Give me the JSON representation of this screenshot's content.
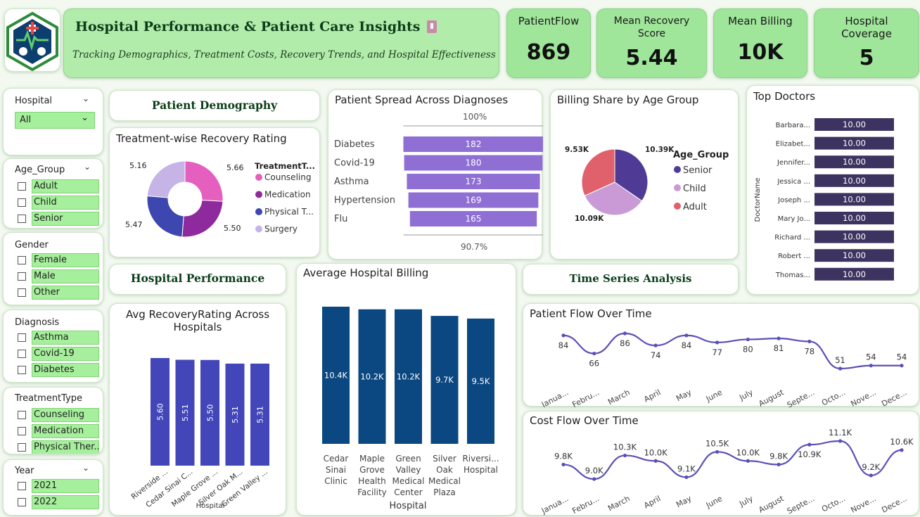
{
  "header": {
    "title": "Hospital Performance & Patient Care Insights",
    "subtitle": "Tracking Demographics, Treatment Costs, Recovery Trends, and Hospital Effectiveness"
  },
  "kpis": [
    {
      "label": "PatientFlow",
      "value": "869"
    },
    {
      "label": "Mean Recovery Score",
      "value": "5.44"
    },
    {
      "label": "Mean Billing",
      "value": "10K"
    },
    {
      "label": "Hospital Coverage",
      "value": "5"
    }
  ],
  "slicers": {
    "hospital": {
      "title": "Hospital",
      "selected": "All"
    },
    "age_group": {
      "title": "Age_Group",
      "options": [
        "Adult",
        "Child",
        "Senior"
      ]
    },
    "gender": {
      "title": "Gender",
      "options": [
        "Female",
        "Male",
        "Other"
      ]
    },
    "diagnosis": {
      "title": "Diagnosis",
      "options": [
        "Asthma",
        "Covid-19",
        "Diabetes"
      ]
    },
    "treatment": {
      "title": "TreatmentType",
      "options": [
        "Counseling",
        "Medication",
        "Physical Ther..."
      ]
    },
    "year": {
      "title": "Year",
      "options": [
        "2021",
        "2022"
      ]
    }
  },
  "sections": {
    "demography": "Patient Demography",
    "performance": "Hospital Performance",
    "time_series": "Time Series Analysis"
  },
  "colors": {
    "green_kpi": "#9fe59a",
    "purple_bar": "#8f6fd4",
    "navy_bar": "#0b4780",
    "indigo_bar": "#4346b8",
    "line": "#5a4fb8",
    "doctor_bar": "#3d3360"
  },
  "chart_data": [
    {
      "id": "treatment_recovery",
      "type": "pie",
      "title": "Treatment-wise Recovery Rating",
      "legend_title": "TreatmentT...",
      "categories": [
        "Counseling",
        "Medication",
        "Physical T...",
        "Surgery"
      ],
      "values": [
        5.66,
        5.5,
        5.47,
        5.16
      ],
      "labels": [
        "5.66",
        "5.50",
        "5.47",
        "5.16"
      ],
      "colors": [
        "#e55fbf",
        "#8f2a9e",
        "#3e46b0",
        "#c6b4e6"
      ],
      "legend_placement": "right"
    },
    {
      "id": "diagnoses_funnel",
      "type": "bar",
      "title": "Patient Spread Across Diagnoses",
      "categories": [
        "Diabetes",
        "Covid-19",
        "Asthma",
        "Hypertension",
        "Flu"
      ],
      "values": [
        182,
        180,
        173,
        169,
        165
      ],
      "top_label": "100%",
      "bottom_label": "90.7%"
    },
    {
      "id": "billing_age",
      "type": "pie",
      "title": "Billing Share by Age Group",
      "legend_title": "Age_Group",
      "categories": [
        "Senior",
        "Child",
        "Adult"
      ],
      "values": [
        10.39,
        10.09,
        9.53
      ],
      "labels": [
        "10.39K",
        "10.09K",
        "9.53K"
      ],
      "colors": [
        "#4f3a96",
        "#c99ad6",
        "#e0606c"
      ],
      "legend_placement": "right"
    },
    {
      "id": "top_doctors",
      "type": "bar",
      "title": "Top Doctors",
      "ylabel": "DoctorName",
      "categories": [
        "Barbara...",
        "Elizabet...",
        "Jennifer...",
        "Jessica ...",
        "Joseph ...",
        "Mary Jo...",
        "Richard ...",
        "Robert ...",
        "Thomas..."
      ],
      "values": [
        10,
        10,
        10,
        10,
        10,
        10,
        10,
        10,
        10
      ],
      "labels": [
        "10.00",
        "10.00",
        "10.00",
        "10.00",
        "10.00",
        "10.00",
        "10.00",
        "10.00",
        "10.00"
      ]
    },
    {
      "id": "avg_recovery_hospitals",
      "type": "bar",
      "title": "Avg RecoveryRating Across Hospitals",
      "xlabel": "Hospital",
      "categories": [
        "Riverside ...",
        "Cedar Sinai C...",
        "Maple Grove ...",
        "Silver Oak M...",
        "Green Valley ..."
      ],
      "values": [
        5.6,
        5.51,
        5.5,
        5.31,
        5.31
      ],
      "labels": [
        "5.60",
        "5.51",
        "5.50",
        "5.31",
        "5.31"
      ]
    },
    {
      "id": "avg_billing",
      "type": "bar",
      "title": "Average Hospital Billing",
      "xlabel": "Hospital",
      "categories": [
        "Cedar Sinai Clinic",
        "Maple Grove Health Facility",
        "Green Valley Medical Center",
        "Silver Oak Medical Plaza",
        "Riversi... Hospital"
      ],
      "category_lines": [
        [
          "Cedar",
          "Sinai",
          "Clinic"
        ],
        [
          "Maple",
          "Grove",
          "Health",
          "Facility"
        ],
        [
          "Green",
          "Valley",
          "Medical",
          "Center"
        ],
        [
          "Silver",
          "Oak",
          "Medical",
          "Plaza"
        ],
        [
          "Riversi...",
          "Hospital"
        ]
      ],
      "values": [
        10.4,
        10.2,
        10.2,
        9.7,
        9.5
      ],
      "labels": [
        "10.4K",
        "10.2K",
        "10.2K",
        "9.7K",
        "9.5K"
      ]
    },
    {
      "id": "patient_flow",
      "type": "line",
      "title": "Patient Flow Over Time",
      "categories": [
        "Janua...",
        "Febru...",
        "March",
        "April",
        "May",
        "June",
        "July",
        "August",
        "Septe...",
        "Octo...",
        "Nove...",
        "Dece..."
      ],
      "values": [
        84,
        66,
        86,
        74,
        84,
        77,
        80,
        81,
        78,
        51,
        54,
        54
      ],
      "labels": [
        "84",
        "66",
        "86",
        "74",
        "84",
        "77",
        "80",
        "81",
        "78",
        "51",
        "54",
        "54"
      ]
    },
    {
      "id": "cost_flow",
      "type": "line",
      "title": "Cost Flow Over Time",
      "categories": [
        "Janua...",
        "Febru...",
        "March",
        "April",
        "May",
        "June",
        "July",
        "August",
        "Septe...",
        "Octo...",
        "Nove...",
        "Dece..."
      ],
      "values": [
        9.8,
        9.0,
        10.3,
        10.0,
        9.1,
        10.5,
        10.0,
        9.8,
        10.9,
        11.1,
        9.2,
        10.6
      ],
      "labels": [
        "9.8K",
        "9.0K",
        "10.3K",
        "10.0K",
        "9.1K",
        "10.5K",
        "10.0K",
        "9.8K",
        "10.9K",
        "11.1K",
        "9.2K",
        "10.6K"
      ]
    }
  ]
}
